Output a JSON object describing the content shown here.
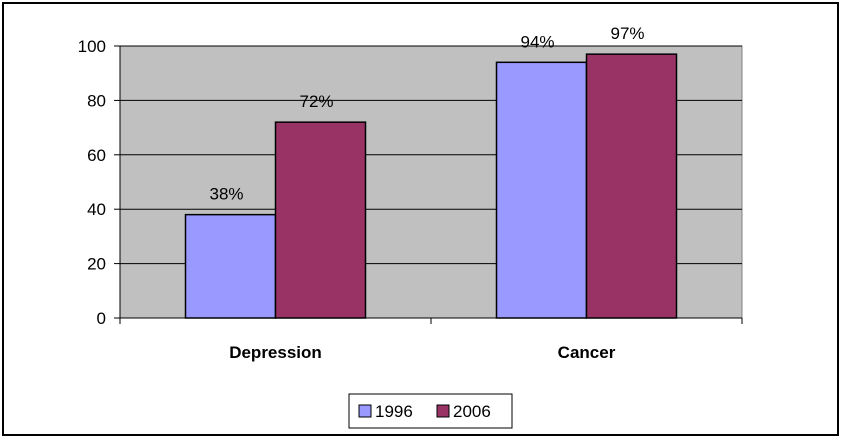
{
  "chart_data": {
    "type": "bar",
    "title": "",
    "xlabel": "",
    "ylabel": "",
    "categories": [
      "Depression",
      "Cancer"
    ],
    "ylim": [
      0,
      100
    ],
    "yticks": [
      0,
      20,
      40,
      60,
      80,
      100
    ],
    "series": [
      {
        "name": "1996",
        "values": [
          38,
          94
        ],
        "labels": [
          "38%",
          "94%"
        ],
        "color": "#9999ff"
      },
      {
        "name": "2006",
        "values": [
          72,
          97
        ],
        "labels": [
          "72%",
          "97%"
        ],
        "color": "#993366"
      }
    ],
    "plot_background": "#c0c0c0",
    "grid": true,
    "legend": "bottom-center"
  }
}
